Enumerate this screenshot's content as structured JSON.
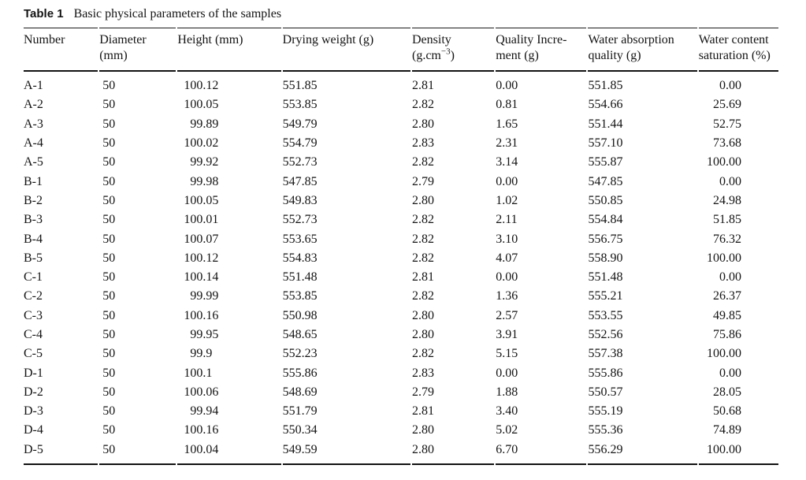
{
  "caption": {
    "label": "Table 1",
    "text": "Basic physical parameters of the samples"
  },
  "table": {
    "columns": [
      {
        "id": "number",
        "lines": [
          "Number"
        ]
      },
      {
        "id": "diameter",
        "lines": [
          "Diameter",
          "(mm)"
        ]
      },
      {
        "id": "height",
        "lines": [
          "Height (mm)"
        ]
      },
      {
        "id": "drying-weight",
        "lines": [
          "Drying weight (g)"
        ]
      },
      {
        "id": "density",
        "lines": [
          "Density"
        ],
        "unit_pre": "(g.cm",
        "unit_sup": "−3",
        "unit_post": ")"
      },
      {
        "id": "quality-increment",
        "lines": [
          "Quality Incre-",
          "ment (g)"
        ]
      },
      {
        "id": "water-absorption",
        "lines": [
          "Water absorption",
          "quality (g)"
        ]
      },
      {
        "id": "water-content",
        "lines": [
          "Water content",
          "saturation (%)"
        ]
      }
    ],
    "rows": [
      [
        "A-1",
        "50",
        "100.12",
        "551.85",
        "2.81",
        "0.00",
        "551.85",
        "0.00"
      ],
      [
        "A-2",
        "50",
        "100.05",
        "553.85",
        "2.82",
        "0.81",
        "554.66",
        "25.69"
      ],
      [
        "A-3",
        "50",
        "99.89",
        "549.79",
        "2.80",
        "1.65",
        "551.44",
        "52.75"
      ],
      [
        "A-4",
        "50",
        "100.02",
        "554.79",
        "2.83",
        "2.31",
        "557.10",
        "73.68"
      ],
      [
        "A-5",
        "50",
        "99.92",
        "552.73",
        "2.82",
        "3.14",
        "555.87",
        "100.00"
      ],
      [
        "B-1",
        "50",
        "99.98",
        "547.85",
        "2.79",
        "0.00",
        "547.85",
        "0.00"
      ],
      [
        "B-2",
        "50",
        "100.05",
        "549.83",
        "2.80",
        "1.02",
        "550.85",
        "24.98"
      ],
      [
        "B-3",
        "50",
        "100.01",
        "552.73",
        "2.82",
        "2.11",
        "554.84",
        "51.85"
      ],
      [
        "B-4",
        "50",
        "100.07",
        "553.65",
        "2.82",
        "3.10",
        "556.75",
        "76.32"
      ],
      [
        "B-5",
        "50",
        "100.12",
        "554.83",
        "2.82",
        "4.07",
        "558.90",
        "100.00"
      ],
      [
        "C-1",
        "50",
        "100.14",
        "551.48",
        "2.81",
        "0.00",
        "551.48",
        "0.00"
      ],
      [
        "C-2",
        "50",
        "99.99",
        "553.85",
        "2.82",
        "1.36",
        "555.21",
        "26.37"
      ],
      [
        "C-3",
        "50",
        "100.16",
        "550.98",
        "2.80",
        "2.57",
        "553.55",
        "49.85"
      ],
      [
        "C-4",
        "50",
        "99.95",
        "548.65",
        "2.80",
        "3.91",
        "552.56",
        "75.86"
      ],
      [
        "C-5",
        "50",
        "99.9",
        "552.23",
        "2.82",
        "5.15",
        "557.38",
        "100.00"
      ],
      [
        "D-1",
        "50",
        "100.1",
        "555.86",
        "2.83",
        "0.00",
        "555.86",
        "0.00"
      ],
      [
        "D-2",
        "50",
        "100.06",
        "548.69",
        "2.79",
        "1.88",
        "550.57",
        "28.05"
      ],
      [
        "D-3",
        "50",
        "99.94",
        "551.79",
        "2.81",
        "3.40",
        "555.19",
        "50.68"
      ],
      [
        "D-4",
        "50",
        "100.16",
        "550.34",
        "2.80",
        "5.02",
        "555.36",
        "74.89"
      ],
      [
        "D-5",
        "50",
        "100.04",
        "549.59",
        "2.80",
        "6.70",
        "556.29",
        "100.00"
      ]
    ]
  }
}
